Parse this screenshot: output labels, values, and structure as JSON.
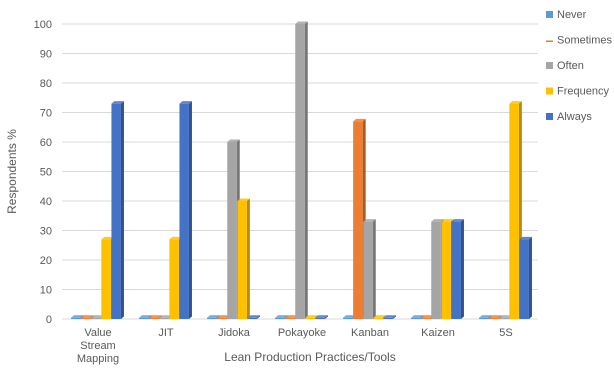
{
  "chart_data": {
    "type": "bar",
    "title": "",
    "xlabel": "Lean Production Practices/Tools",
    "ylabel": "Respondents %",
    "ylim": [
      0,
      100
    ],
    "yticks": [
      0,
      10,
      20,
      30,
      40,
      50,
      60,
      70,
      80,
      90,
      100
    ],
    "grid": true,
    "legend_position": "right",
    "categories": [
      [
        "Value",
        "Stream",
        "Mapping"
      ],
      [
        "JIT"
      ],
      [
        "Jidoka"
      ],
      [
        "Pokayoke"
      ],
      [
        "Kanban"
      ],
      [
        "Kaizen"
      ],
      [
        "5S"
      ]
    ],
    "series": [
      {
        "name": "Never",
        "color": "#5b9bd5",
        "values": [
          0,
          0,
          0,
          0,
          0,
          0,
          0
        ]
      },
      {
        "name": "Sometimes",
        "color": "#ed7d31",
        "values": [
          0,
          0,
          0,
          0,
          67,
          0,
          0
        ]
      },
      {
        "name": "Often",
        "color": "#a5a5a5",
        "values": [
          0,
          0,
          60,
          100,
          33,
          33,
          0
        ]
      },
      {
        "name": "Frequency",
        "color": "#ffc000",
        "values": [
          27,
          27,
          40,
          0,
          0,
          33,
          73
        ]
      },
      {
        "name": "Always",
        "color": "#4472c4",
        "values": [
          73,
          73,
          0,
          0,
          0,
          33,
          27
        ]
      }
    ]
  }
}
